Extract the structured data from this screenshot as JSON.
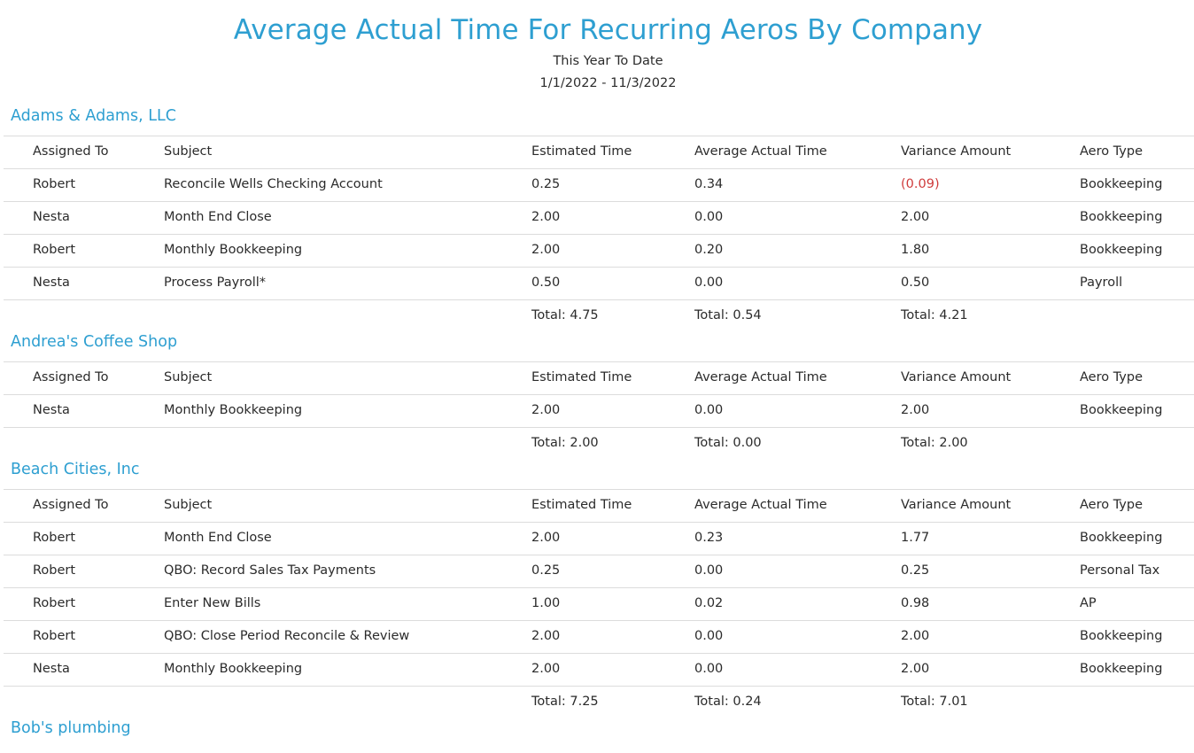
{
  "report": {
    "title": "Average Actual Time For Recurring Aeros By Company",
    "period": "This Year To Date",
    "date_range": "1/1/2022 - 11/3/2022"
  },
  "columns": {
    "assigned": "Assigned To",
    "subject": "Subject",
    "estimated": "Estimated Time",
    "average": "Average Actual Time",
    "variance": "Variance Amount",
    "type": "Aero Type"
  },
  "colors": {
    "accent": "#2e9fd1",
    "negative": "#cf3b3b",
    "rule": "#dcdcdc"
  },
  "groups": [
    {
      "company": "Adams & Adams, LLC",
      "rows": [
        {
          "assigned": "Robert",
          "subject": "Reconcile Wells Checking Account",
          "estimated": "0.25",
          "average": "0.34",
          "variance": "(0.09)",
          "type": "Bookkeeping"
        },
        {
          "assigned": "Nesta",
          "subject": "Month End Close",
          "estimated": "2.00",
          "average": "0.00",
          "variance": "2.00",
          "type": "Bookkeeping"
        },
        {
          "assigned": "Robert",
          "subject": "Monthly Bookkeeping",
          "estimated": "2.00",
          "average": "0.20",
          "variance": "1.80",
          "type": "Bookkeeping"
        },
        {
          "assigned": "Nesta",
          "subject": "Process Payroll*",
          "estimated": "0.50",
          "average": "0.00",
          "variance": "0.50",
          "type": "Payroll"
        }
      ],
      "totals": {
        "estimated": "Total: 4.75",
        "average": "Total: 0.54",
        "variance": "Total: 4.21"
      }
    },
    {
      "company": "Andrea's Coffee Shop",
      "rows": [
        {
          "assigned": "Nesta",
          "subject": "Monthly Bookkeeping",
          "estimated": "2.00",
          "average": "0.00",
          "variance": "2.00",
          "type": "Bookkeeping"
        }
      ],
      "totals": {
        "estimated": "Total: 2.00",
        "average": "Total: 0.00",
        "variance": "Total: 2.00"
      }
    },
    {
      "company": "Beach Cities, Inc",
      "rows": [
        {
          "assigned": "Robert",
          "subject": "Month End Close",
          "estimated": "2.00",
          "average": "0.23",
          "variance": "1.77",
          "type": "Bookkeeping"
        },
        {
          "assigned": "Robert",
          "subject": "QBO: Record Sales Tax Payments",
          "estimated": "0.25",
          "average": "0.00",
          "variance": "0.25",
          "type": "Personal Tax"
        },
        {
          "assigned": "Robert",
          "subject": "Enter New Bills",
          "estimated": "1.00",
          "average": "0.02",
          "variance": "0.98",
          "type": "AP"
        },
        {
          "assigned": "Robert",
          "subject": "QBO: Close Period Reconcile & Review",
          "estimated": "2.00",
          "average": "0.00",
          "variance": "2.00",
          "type": "Bookkeeping"
        },
        {
          "assigned": "Nesta",
          "subject": "Monthly Bookkeeping",
          "estimated": "2.00",
          "average": "0.00",
          "variance": "2.00",
          "type": "Bookkeeping"
        }
      ],
      "totals": {
        "estimated": "Total: 7.25",
        "average": "Total: 0.24",
        "variance": "Total: 7.01"
      }
    },
    {
      "company": "Bob's plumbing",
      "rows": [],
      "totals": null
    }
  ]
}
